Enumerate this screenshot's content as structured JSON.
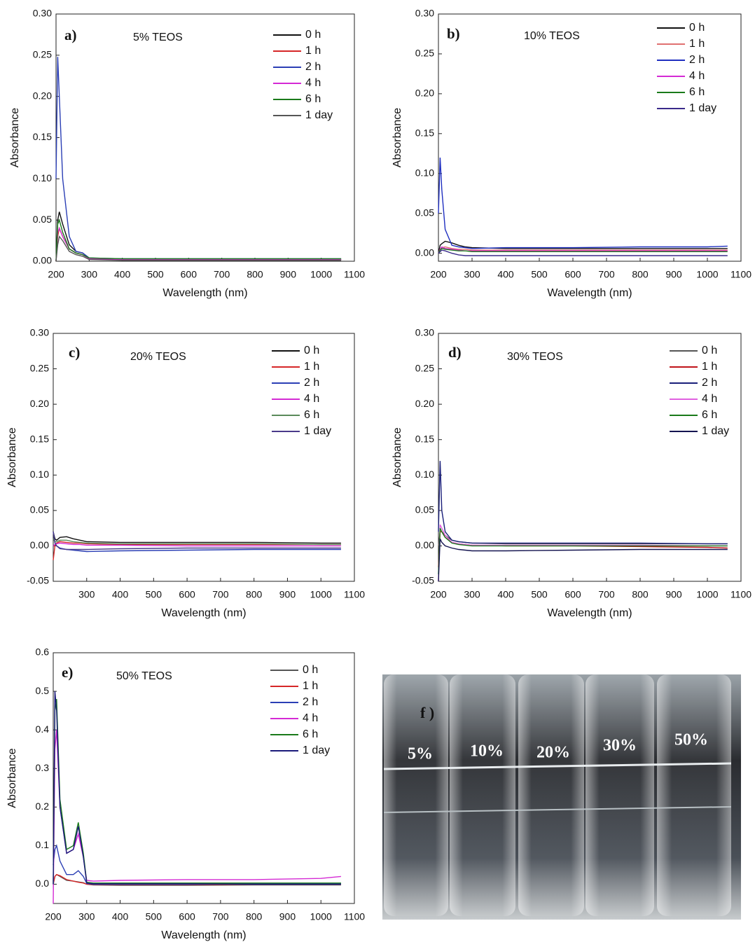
{
  "chart_data": [
    {
      "type": "line",
      "panel_label": "a)",
      "annotation": "5% TEOS",
      "x_label": "Wavelength (nm)",
      "y_label": "Absorbance",
      "xlim": [
        200,
        1100
      ],
      "xticks": [
        200,
        300,
        400,
        500,
        600,
        700,
        800,
        900,
        1000,
        1100
      ],
      "ylim": [
        0,
        0.3
      ],
      "yticks": [
        {
          "value": 0,
          "label": "0.00"
        },
        {
          "value": 0.05,
          "label": "0.05"
        },
        {
          "value": 0.1,
          "label": "0.10"
        },
        {
          "value": 0.15,
          "label": "0.15"
        },
        {
          "value": 0.2,
          "label": "0.20"
        },
        {
          "value": 0.25,
          "label": "0.25"
        },
        {
          "value": 0.3,
          "label": "0.30"
        }
      ],
      "x": [
        200,
        205,
        210,
        220,
        240,
        260,
        280,
        300,
        400,
        600,
        800,
        1000,
        1060
      ],
      "series": [
        {
          "name": "0 h",
          "color": "#111111",
          "values": [
            0,
            0.05,
            0.06,
            0.045,
            0.02,
            0.012,
            0.01,
            0.004,
            0.002,
            0.002,
            0.002,
            0.002,
            0.002
          ]
        },
        {
          "name": "1 h",
          "color": "#d62728",
          "values": [
            0,
            0.03,
            0.04,
            0.03,
            0.015,
            0.01,
            0.008,
            0.003,
            0.002,
            0.002,
            0.002,
            0.002,
            0.002
          ]
        },
        {
          "name": "2 h",
          "color": "#2b3fb5",
          "values": [
            0.1,
            0.248,
            0.2,
            0.1,
            0.03,
            0.012,
            0.01,
            0.004,
            0.003,
            0.003,
            0.003,
            0.003,
            0.003
          ]
        },
        {
          "name": "4 h",
          "color": "#d42ad4",
          "values": [
            0,
            0.035,
            0.04,
            0.03,
            0.015,
            0.01,
            0.008,
            0.003,
            0.002,
            0.002,
            0.002,
            0.002,
            0.002
          ]
        },
        {
          "name": "6 h",
          "color": "#1a7a1a",
          "values": [
            0,
            0.045,
            0.05,
            0.035,
            0.015,
            0.01,
            0.008,
            0.004,
            0.003,
            0.003,
            0.003,
            0.003,
            0.003
          ]
        },
        {
          "name": "1 day",
          "color": "#555555",
          "values": [
            0,
            0.02,
            0.03,
            0.025,
            0.012,
            0.008,
            0.006,
            0.002,
            0.001,
            0.001,
            0.001,
            0.001,
            0.001
          ]
        }
      ]
    },
    {
      "type": "line",
      "panel_label": "b)",
      "annotation": "10% TEOS",
      "x_label": "Wavelength (nm)",
      "y_label": "Absorbance",
      "xlim": [
        200,
        1100
      ],
      "xticks": [
        200,
        300,
        400,
        500,
        600,
        700,
        800,
        900,
        1000,
        1100
      ],
      "ylim": [
        -0.01,
        0.3
      ],
      "yticks": [
        {
          "value": 0,
          "label": "0.00"
        },
        {
          "value": 0.05,
          "label": "0.05"
        },
        {
          "value": 0.1,
          "label": "0.10"
        },
        {
          "value": 0.15,
          "label": "0.15"
        },
        {
          "value": 0.2,
          "label": "0.20"
        },
        {
          "value": 0.25,
          "label": "0.25"
        },
        {
          "value": 0.3,
          "label": "0.30"
        }
      ],
      "x": [
        200,
        205,
        210,
        220,
        240,
        260,
        280,
        300,
        400,
        600,
        800,
        1000,
        1060
      ],
      "series": [
        {
          "name": "0 h",
          "color": "#111111",
          "values": [
            0,
            0.01,
            0.012,
            0.015,
            0.013,
            0.01,
            0.008,
            0.007,
            0.006,
            0.006,
            0.006,
            0.006,
            0.006
          ]
        },
        {
          "name": "1 h",
          "color": "#e07070",
          "values": [
            0,
            0.005,
            0.007,
            0.008,
            0.006,
            0.005,
            0.005,
            0.004,
            0.004,
            0.004,
            0.004,
            0.004,
            0.004
          ]
        },
        {
          "name": "2 h",
          "color": "#1f2fc0",
          "values": [
            0.05,
            0.12,
            0.08,
            0.03,
            0.01,
            0.008,
            0.007,
            0.006,
            0.007,
            0.007,
            0.008,
            0.008,
            0.009
          ]
        },
        {
          "name": "4 h",
          "color": "#d42ad4",
          "values": [
            0,
            0.005,
            0.008,
            0.006,
            0.005,
            0.004,
            0.003,
            0.003,
            0.003,
            0.003,
            0.003,
            0.003,
            0.003
          ]
        },
        {
          "name": "6 h",
          "color": "#1a7a1a",
          "values": [
            0,
            0.004,
            0.006,
            0.005,
            0.004,
            0.003,
            0.003,
            0.002,
            0.002,
            0.002,
            0.002,
            0.002,
            0.002
          ]
        },
        {
          "name": "1 day",
          "color": "#3a2a8a",
          "values": [
            0,
            0.002,
            0.004,
            0.003,
            0,
            -0.002,
            -0.003,
            -0.003,
            -0.003,
            -0.003,
            -0.003,
            -0.003,
            -0.003
          ]
        }
      ]
    },
    {
      "type": "line",
      "panel_label": "c)",
      "annotation": "20% TEOS",
      "x_label": "Wavelength (nm)",
      "y_label": "Absorbance",
      "xlim": [
        200,
        1100
      ],
      "xticks": [
        300,
        400,
        500,
        600,
        700,
        800,
        900,
        1000,
        1100
      ],
      "ylim": [
        -0.05,
        0.3
      ],
      "yticks": [
        {
          "value": -0.05,
          "label": "-0.05"
        },
        {
          "value": 0,
          "label": "0.00"
        },
        {
          "value": 0.05,
          "label": "0.05"
        },
        {
          "value": 0.1,
          "label": "0.10"
        },
        {
          "value": 0.15,
          "label": "0.15"
        },
        {
          "value": 0.2,
          "label": "0.20"
        },
        {
          "value": 0.25,
          "label": "0.25"
        },
        {
          "value": 0.3,
          "label": "0.30"
        }
      ],
      "x": [
        200,
        205,
        210,
        220,
        240,
        260,
        280,
        300,
        400,
        600,
        800,
        1000,
        1060
      ],
      "series": [
        {
          "name": "0 h",
          "color": "#111111",
          "values": [
            0.02,
            0.01,
            0.008,
            0.012,
            0.013,
            0.01,
            0.008,
            0.006,
            0.005,
            0.005,
            0.005,
            0.004,
            0.004
          ]
        },
        {
          "name": "1 h",
          "color": "#d62728",
          "values": [
            -0.02,
            0,
            0.004,
            0.006,
            0.005,
            0.004,
            0.004,
            0.003,
            0.002,
            0.002,
            0.002,
            0.002,
            0.002
          ]
        },
        {
          "name": "2 h",
          "color": "#2b3fb5",
          "values": [
            0.02,
            0.005,
            0,
            -0.003,
            -0.005,
            -0.006,
            -0.007,
            -0.008,
            -0.007,
            -0.006,
            -0.005,
            -0.005,
            -0.005
          ]
        },
        {
          "name": "4 h",
          "color": "#d42ad4",
          "values": [
            0,
            0.002,
            0.003,
            0.004,
            0.003,
            0.002,
            0.002,
            0.001,
            0.001,
            0,
            0,
            0,
            0
          ]
        },
        {
          "name": "6 h",
          "color": "#5a8a5a",
          "values": [
            0.01,
            0.006,
            0.006,
            0.008,
            0.008,
            0.006,
            0.005,
            0.004,
            0.003,
            0.003,
            0.003,
            0.002,
            0.002
          ]
        },
        {
          "name": "1 day",
          "color": "#4a3a8a",
          "values": [
            0.02,
            0.004,
            0,
            -0.004,
            -0.005,
            -0.005,
            -0.005,
            -0.005,
            -0.004,
            -0.003,
            -0.003,
            -0.003,
            -0.003
          ]
        }
      ]
    },
    {
      "type": "line",
      "panel_label": "d)",
      "annotation": "30% TEOS",
      "x_label": "Wavelength (nm)",
      "y_label": "Absorbance",
      "xlim": [
        200,
        1100
      ],
      "xticks": [
        200,
        300,
        400,
        500,
        600,
        700,
        800,
        900,
        1000,
        1100
      ],
      "ylim": [
        -0.05,
        0.3
      ],
      "yticks": [
        {
          "value": -0.05,
          "label": "-0.05"
        },
        {
          "value": 0,
          "label": "0.00"
        },
        {
          "value": 0.05,
          "label": "0.05"
        },
        {
          "value": 0.1,
          "label": "0.10"
        },
        {
          "value": 0.15,
          "label": "0.15"
        },
        {
          "value": 0.2,
          "label": "0.20"
        },
        {
          "value": 0.25,
          "label": "0.25"
        },
        {
          "value": 0.3,
          "label": "0.30"
        }
      ],
      "x": [
        200,
        205,
        210,
        220,
        240,
        260,
        280,
        300,
        400,
        600,
        800,
        1000,
        1060
      ],
      "series": [
        {
          "name": "0 h",
          "color": "#555555",
          "values": [
            0,
            0.02,
            0.02,
            0.015,
            0.008,
            0.006,
            0.005,
            0.004,
            0.003,
            0.003,
            0.003,
            0.003,
            0.003
          ]
        },
        {
          "name": "1 h",
          "color": "#c0141a",
          "values": [
            -0.03,
            0.02,
            0.02,
            0.012,
            0.005,
            0.003,
            0.002,
            0.001,
            0,
            0,
            -0.001,
            -0.002,
            -0.003
          ]
        },
        {
          "name": "2 h",
          "color": "#1a1f7a",
          "values": [
            0.02,
            0.12,
            0.05,
            0.02,
            0.008,
            0.006,
            0.005,
            0.004,
            0.004,
            0.004,
            0.004,
            0.003,
            0.003
          ]
        },
        {
          "name": "4 h",
          "color": "#e060e0",
          "values": [
            -0.05,
            0.03,
            0.025,
            0.015,
            0.005,
            0.003,
            0.002,
            0.001,
            0.001,
            0.001,
            0.001,
            0,
            0
          ]
        },
        {
          "name": "6 h",
          "color": "#1a7a1a",
          "values": [
            -0.04,
            0.025,
            0.02,
            0.012,
            0.004,
            0.002,
            0.001,
            0,
            0,
            0,
            0,
            0,
            0
          ]
        },
        {
          "name": "1 day",
          "color": "#141450",
          "values": [
            -0.05,
            0.01,
            0.005,
            0,
            -0.003,
            -0.005,
            -0.006,
            -0.007,
            -0.007,
            -0.006,
            -0.005,
            -0.005,
            -0.005
          ]
        }
      ]
    },
    {
      "type": "line",
      "panel_label": "e)",
      "annotation": "50% TEOS",
      "x_label": "Wavelength (nm)",
      "y_label": "Absorbance",
      "xlim": [
        200,
        1100
      ],
      "xticks": [
        200,
        300,
        400,
        500,
        600,
        700,
        800,
        900,
        1000,
        1100
      ],
      "ylim": [
        -0.05,
        0.6
      ],
      "yticks": [
        {
          "value": 0,
          "label": "0.0"
        },
        0.1,
        0.2,
        0.3,
        0.4,
        0.5,
        0.6
      ],
      "x": [
        200,
        205,
        210,
        220,
        240,
        260,
        275,
        290,
        300,
        320,
        400,
        600,
        800,
        1000,
        1060
      ],
      "series": [
        {
          "name": "0 h",
          "color": "#555555",
          "values": [
            0,
            0.02,
            0.025,
            0.02,
            0.01,
            0.008,
            0.006,
            0.004,
            0,
            -0.002,
            -0.003,
            -0.003,
            -0.002,
            -0.002,
            -0.002
          ]
        },
        {
          "name": "1 h",
          "color": "#d62728",
          "values": [
            0,
            0.02,
            0.025,
            0.022,
            0.012,
            0.008,
            0.005,
            0.003,
            0,
            -0.001,
            -0.001,
            -0.001,
            0,
            0,
            0
          ]
        },
        {
          "name": "2 h",
          "color": "#2b3fb5",
          "values": [
            0.05,
            0.09,
            0.1,
            0.06,
            0.025,
            0.025,
            0.035,
            0.02,
            0.002,
            0,
            0,
            0,
            0.001,
            0.002,
            0.002
          ]
        },
        {
          "name": "4 h",
          "color": "#d42ad4",
          "values": [
            -0.05,
            0.35,
            0.4,
            0.2,
            0.08,
            0.09,
            0.13,
            0.07,
            0.01,
            0.008,
            0.01,
            0.012,
            0.012,
            0.015,
            0.02
          ]
        },
        {
          "name": "6 h",
          "color": "#1a7a1a",
          "values": [
            0,
            0.45,
            0.48,
            0.22,
            0.09,
            0.1,
            0.16,
            0.08,
            0.005,
            0.003,
            0.003,
            0.003,
            0.003,
            0.003,
            0.003
          ]
        },
        {
          "name": "1 day",
          "color": "#1a1a7a",
          "values": [
            0,
            0.5,
            0.45,
            0.2,
            0.08,
            0.09,
            0.15,
            0.07,
            0.003,
            0.001,
            0.001,
            0.001,
            0,
            0,
            0
          ]
        }
      ]
    }
  ],
  "photo": {
    "label": "f )",
    "tubes": [
      "5%",
      "10%",
      "20%",
      "30%",
      "50%"
    ]
  }
}
